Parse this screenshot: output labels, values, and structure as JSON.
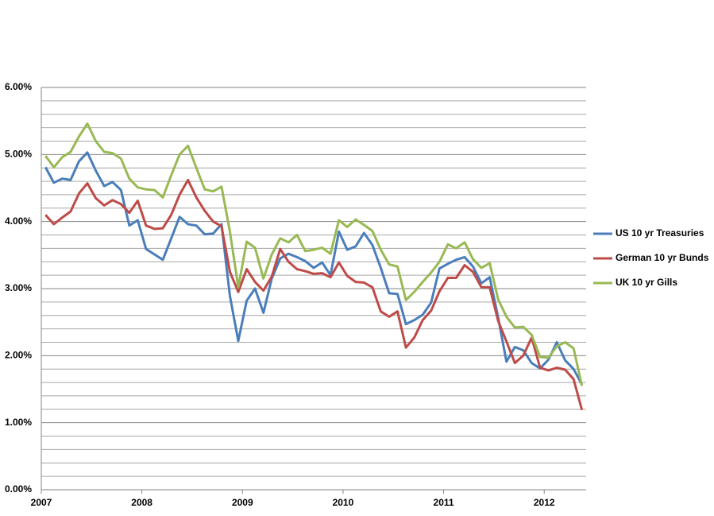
{
  "chart_data": {
    "type": "line",
    "categories": [
      "2007",
      null,
      null,
      null,
      null,
      null,
      null,
      null,
      null,
      null,
      null,
      null,
      "2008",
      null,
      null,
      null,
      null,
      null,
      null,
      null,
      null,
      null,
      null,
      null,
      "2009",
      null,
      null,
      null,
      null,
      null,
      null,
      null,
      null,
      null,
      null,
      null,
      "2010",
      null,
      null,
      null,
      null,
      null,
      null,
      null,
      null,
      null,
      null,
      null,
      "2011",
      null,
      null,
      null,
      null,
      null,
      null,
      null,
      null,
      null,
      null,
      null,
      "2012",
      null,
      null,
      null,
      null
    ],
    "series": [
      {
        "name": "US 10 yr Treasuries",
        "color": "#4a7ebb",
        "values": [
          4.81,
          4.58,
          4.64,
          4.62,
          4.9,
          5.03,
          4.76,
          4.53,
          4.59,
          4.47,
          3.94,
          4.02,
          3.59,
          3.51,
          3.43,
          3.75,
          4.07,
          3.96,
          3.94,
          3.81,
          3.82,
          3.96,
          2.89,
          2.22,
          2.82,
          3.0,
          2.64,
          3.15,
          3.45,
          3.52,
          3.47,
          3.41,
          3.31,
          3.39,
          3.2,
          3.85,
          3.58,
          3.63,
          3.83,
          3.65,
          3.31,
          2.93,
          2.92,
          2.47,
          2.53,
          2.61,
          2.79,
          3.3,
          3.37,
          3.43,
          3.47,
          3.33,
          3.08,
          3.17,
          2.57,
          1.91,
          2.13,
          2.08,
          1.89,
          1.81,
          1.94,
          2.2,
          1.93,
          1.8,
          1.57
        ]
      },
      {
        "name": "German 10 yr Bunds",
        "color": "#be4b48",
        "values": [
          4.1,
          3.96,
          4.06,
          4.15,
          4.42,
          4.57,
          4.35,
          4.24,
          4.32,
          4.26,
          4.13,
          4.31,
          3.94,
          3.89,
          3.9,
          4.1,
          4.4,
          4.62,
          4.36,
          4.16,
          4.0,
          3.93,
          3.25,
          2.95,
          3.29,
          3.1,
          2.97,
          3.18,
          3.59,
          3.4,
          3.29,
          3.26,
          3.22,
          3.23,
          3.17,
          3.39,
          3.19,
          3.1,
          3.09,
          3.02,
          2.66,
          2.58,
          2.66,
          2.12,
          2.27,
          2.53,
          2.67,
          2.96,
          3.16,
          3.16,
          3.35,
          3.25,
          3.02,
          3.02,
          2.52,
          2.21,
          1.89,
          2.0,
          2.27,
          1.82,
          1.78,
          1.82,
          1.79,
          1.65,
          1.19
        ]
      },
      {
        "name": "UK 10 yr Gills",
        "color": "#98b954",
        "values": [
          4.98,
          4.81,
          4.96,
          5.04,
          5.27,
          5.46,
          5.2,
          5.04,
          5.02,
          4.94,
          4.64,
          4.51,
          4.48,
          4.47,
          4.36,
          4.69,
          5.0,
          5.13,
          4.8,
          4.48,
          4.45,
          4.52,
          3.85,
          3.02,
          3.7,
          3.61,
          3.15,
          3.51,
          3.75,
          3.69,
          3.8,
          3.56,
          3.58,
          3.61,
          3.52,
          4.02,
          3.92,
          4.03,
          3.95,
          3.86,
          3.58,
          3.36,
          3.33,
          2.83,
          2.95,
          3.1,
          3.24,
          3.4,
          3.66,
          3.6,
          3.69,
          3.44,
          3.31,
          3.38,
          2.84,
          2.58,
          2.42,
          2.43,
          2.31,
          1.98,
          1.97,
          2.14,
          2.2,
          2.11,
          1.55
        ]
      }
    ],
    "ylim": [
      0,
      6
    ],
    "yticks": [
      {
        "value": 0,
        "label": "0.00%"
      },
      {
        "value": 1,
        "label": "1.00%"
      },
      {
        "value": 2,
        "label": "2.00%"
      },
      {
        "value": 3,
        "label": "3.00%"
      },
      {
        "value": 4,
        "label": "4.00%"
      },
      {
        "value": 5,
        "label": "5.00%"
      },
      {
        "value": 6,
        "label": "6.00%"
      }
    ],
    "minor_yticks": [
      0.2,
      0.4,
      0.6,
      0.8,
      1.2,
      1.4,
      1.6,
      1.8,
      2.2,
      2.4,
      2.6,
      2.8,
      3.2,
      3.4,
      3.6,
      3.8,
      4.2,
      4.4,
      4.6,
      4.8,
      5.2,
      5.4,
      5.6,
      5.8
    ],
    "grid": true,
    "legend": "right"
  }
}
